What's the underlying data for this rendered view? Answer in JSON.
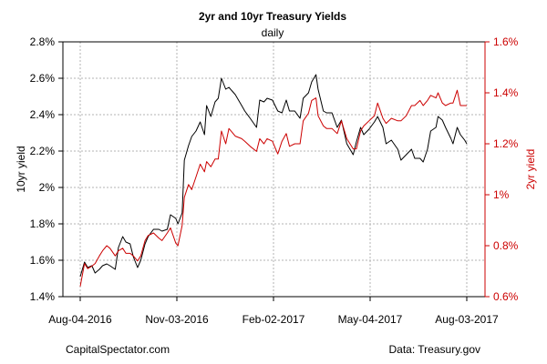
{
  "chart_data": {
    "type": "line",
    "title": "2yr and 10yr Treasury Yields",
    "subtitle": "daily",
    "ylabel_left": "10yr yield",
    "ylabel_right": "2yr yield",
    "ylim_left": [
      1.4,
      2.8
    ],
    "ylim_right": [
      0.6,
      1.6
    ],
    "yticks_left": [
      "1.4%",
      "1.6%",
      "1.8%",
      "2%",
      "2.2%",
      "2.4%",
      "2.6%",
      "2.8%"
    ],
    "yticks_right": [
      "0.6%",
      "0.8%",
      "1%",
      "1.2%",
      "1.4%",
      "1.6%"
    ],
    "xticks": [
      "Aug-04-2016",
      "Nov-03-2016",
      "Feb-02-2017",
      "May-04-2017",
      "Aug-03-2017"
    ],
    "xlim": [
      "2016-08-04",
      "2017-08-03"
    ],
    "grid": true,
    "series": [
      {
        "name": "10yr yield",
        "axis": "left",
        "color": "#000000",
        "points": [
          [
            "2016-08-04",
            1.51
          ],
          [
            "2016-08-08",
            1.59
          ],
          [
            "2016-08-11",
            1.56
          ],
          [
            "2016-08-15",
            1.57
          ],
          [
            "2016-08-18",
            1.53
          ],
          [
            "2016-08-22",
            1.55
          ],
          [
            "2016-08-25",
            1.57
          ],
          [
            "2016-08-29",
            1.58
          ],
          [
            "2016-09-01",
            1.57
          ],
          [
            "2016-09-06",
            1.55
          ],
          [
            "2016-09-09",
            1.67
          ],
          [
            "2016-09-13",
            1.73
          ],
          [
            "2016-09-16",
            1.7
          ],
          [
            "2016-09-20",
            1.69
          ],
          [
            "2016-09-23",
            1.62
          ],
          [
            "2016-09-27",
            1.56
          ],
          [
            "2016-09-30",
            1.6
          ],
          [
            "2016-10-04",
            1.69
          ],
          [
            "2016-10-07",
            1.73
          ],
          [
            "2016-10-12",
            1.77
          ],
          [
            "2016-10-17",
            1.77
          ],
          [
            "2016-10-20",
            1.76
          ],
          [
            "2016-10-25",
            1.77
          ],
          [
            "2016-10-28",
            1.85
          ],
          [
            "2016-11-02",
            1.83
          ],
          [
            "2016-11-04",
            1.8
          ],
          [
            "2016-11-08",
            1.86
          ],
          [
            "2016-11-10",
            2.15
          ],
          [
            "2016-11-14",
            2.23
          ],
          [
            "2016-11-17",
            2.28
          ],
          [
            "2016-11-21",
            2.31
          ],
          [
            "2016-11-25",
            2.36
          ],
          [
            "2016-11-29",
            2.29
          ],
          [
            "2016-12-01",
            2.45
          ],
          [
            "2016-12-05",
            2.39
          ],
          [
            "2016-12-09",
            2.47
          ],
          [
            "2016-12-12",
            2.49
          ],
          [
            "2016-12-15",
            2.6
          ],
          [
            "2016-12-19",
            2.54
          ],
          [
            "2016-12-22",
            2.55
          ],
          [
            "2016-12-28",
            2.51
          ],
          [
            "2017-01-03",
            2.45
          ],
          [
            "2017-01-06",
            2.42
          ],
          [
            "2017-01-11",
            2.38
          ],
          [
            "2017-01-17",
            2.33
          ],
          [
            "2017-01-20",
            2.48
          ],
          [
            "2017-01-24",
            2.47
          ],
          [
            "2017-01-27",
            2.49
          ],
          [
            "2017-02-01",
            2.48
          ],
          [
            "2017-02-06",
            2.42
          ],
          [
            "2017-02-10",
            2.41
          ],
          [
            "2017-02-14",
            2.48
          ],
          [
            "2017-02-17",
            2.42
          ],
          [
            "2017-02-22",
            2.42
          ],
          [
            "2017-02-27",
            2.38
          ],
          [
            "2017-03-02",
            2.49
          ],
          [
            "2017-03-07",
            2.52
          ],
          [
            "2017-03-10",
            2.58
          ],
          [
            "2017-03-14",
            2.62
          ],
          [
            "2017-03-16",
            2.54
          ],
          [
            "2017-03-21",
            2.42
          ],
          [
            "2017-03-24",
            2.41
          ],
          [
            "2017-03-29",
            2.41
          ],
          [
            "2017-04-03",
            2.33
          ],
          [
            "2017-04-07",
            2.37
          ],
          [
            "2017-04-12",
            2.24
          ],
          [
            "2017-04-18",
            2.18
          ],
          [
            "2017-04-21",
            2.25
          ],
          [
            "2017-04-25",
            2.33
          ],
          [
            "2017-04-28",
            2.29
          ],
          [
            "2017-05-03",
            2.32
          ],
          [
            "2017-05-08",
            2.36
          ],
          [
            "2017-05-11",
            2.39
          ],
          [
            "2017-05-16",
            2.33
          ],
          [
            "2017-05-19",
            2.24
          ],
          [
            "2017-05-24",
            2.26
          ],
          [
            "2017-05-30",
            2.21
          ],
          [
            "2017-06-02",
            2.15
          ],
          [
            "2017-06-07",
            2.18
          ],
          [
            "2017-06-12",
            2.21
          ],
          [
            "2017-06-15",
            2.16
          ],
          [
            "2017-06-20",
            2.16
          ],
          [
            "2017-06-23",
            2.14
          ],
          [
            "2017-06-27",
            2.21
          ],
          [
            "2017-06-30",
            2.31
          ],
          [
            "2017-07-05",
            2.33
          ],
          [
            "2017-07-07",
            2.39
          ],
          [
            "2017-07-11",
            2.37
          ],
          [
            "2017-07-14",
            2.33
          ],
          [
            "2017-07-19",
            2.27
          ],
          [
            "2017-07-21",
            2.24
          ],
          [
            "2017-07-25",
            2.33
          ],
          [
            "2017-07-28",
            2.29
          ],
          [
            "2017-08-01",
            2.26
          ],
          [
            "2017-08-03",
            2.24
          ]
        ]
      },
      {
        "name": "2yr yield",
        "axis": "right",
        "color": "#cc0000",
        "points": [
          [
            "2016-08-04",
            0.64
          ],
          [
            "2016-08-08",
            0.73
          ],
          [
            "2016-08-11",
            0.71
          ],
          [
            "2016-08-15",
            0.72
          ],
          [
            "2016-08-18",
            0.73
          ],
          [
            "2016-08-22",
            0.76
          ],
          [
            "2016-08-25",
            0.78
          ],
          [
            "2016-08-29",
            0.8
          ],
          [
            "2016-09-01",
            0.79
          ],
          [
            "2016-09-06",
            0.76
          ],
          [
            "2016-09-09",
            0.78
          ],
          [
            "2016-09-13",
            0.79
          ],
          [
            "2016-09-16",
            0.77
          ],
          [
            "2016-09-20",
            0.77
          ],
          [
            "2016-09-23",
            0.76
          ],
          [
            "2016-09-27",
            0.74
          ],
          [
            "2016-09-30",
            0.76
          ],
          [
            "2016-10-04",
            0.82
          ],
          [
            "2016-10-07",
            0.84
          ],
          [
            "2016-10-12",
            0.85
          ],
          [
            "2016-10-17",
            0.83
          ],
          [
            "2016-10-20",
            0.82
          ],
          [
            "2016-10-25",
            0.85
          ],
          [
            "2016-10-28",
            0.87
          ],
          [
            "2016-11-02",
            0.81
          ],
          [
            "2016-11-04",
            0.8
          ],
          [
            "2016-11-08",
            0.88
          ],
          [
            "2016-11-10",
            0.99
          ],
          [
            "2016-11-14",
            1.04
          ],
          [
            "2016-11-17",
            1.02
          ],
          [
            "2016-11-21",
            1.07
          ],
          [
            "2016-11-25",
            1.12
          ],
          [
            "2016-11-29",
            1.09
          ],
          [
            "2016-12-01",
            1.13
          ],
          [
            "2016-12-05",
            1.11
          ],
          [
            "2016-12-09",
            1.14
          ],
          [
            "2016-12-12",
            1.14
          ],
          [
            "2016-12-15",
            1.25
          ],
          [
            "2016-12-19",
            1.2
          ],
          [
            "2016-12-22",
            1.26
          ],
          [
            "2016-12-28",
            1.23
          ],
          [
            "2017-01-03",
            1.22
          ],
          [
            "2017-01-06",
            1.21
          ],
          [
            "2017-01-11",
            1.19
          ],
          [
            "2017-01-17",
            1.17
          ],
          [
            "2017-01-20",
            1.22
          ],
          [
            "2017-01-24",
            1.2
          ],
          [
            "2017-01-27",
            1.22
          ],
          [
            "2017-02-01",
            1.21
          ],
          [
            "2017-02-06",
            1.16
          ],
          [
            "2017-02-10",
            1.21
          ],
          [
            "2017-02-14",
            1.24
          ],
          [
            "2017-02-17",
            1.19
          ],
          [
            "2017-02-22",
            1.2
          ],
          [
            "2017-02-27",
            1.2
          ],
          [
            "2017-03-02",
            1.29
          ],
          [
            "2017-03-07",
            1.32
          ],
          [
            "2017-03-10",
            1.37
          ],
          [
            "2017-03-14",
            1.38
          ],
          [
            "2017-03-16",
            1.31
          ],
          [
            "2017-03-21",
            1.27
          ],
          [
            "2017-03-24",
            1.26
          ],
          [
            "2017-03-29",
            1.26
          ],
          [
            "2017-04-03",
            1.24
          ],
          [
            "2017-04-07",
            1.29
          ],
          [
            "2017-04-12",
            1.22
          ],
          [
            "2017-04-18",
            1.18
          ],
          [
            "2017-04-21",
            1.18
          ],
          [
            "2017-04-25",
            1.25
          ],
          [
            "2017-04-28",
            1.27
          ],
          [
            "2017-05-03",
            1.29
          ],
          [
            "2017-05-08",
            1.31
          ],
          [
            "2017-05-11",
            1.36
          ],
          [
            "2017-05-16",
            1.3
          ],
          [
            "2017-05-19",
            1.28
          ],
          [
            "2017-05-24",
            1.3
          ],
          [
            "2017-05-30",
            1.29
          ],
          [
            "2017-06-02",
            1.29
          ],
          [
            "2017-06-07",
            1.31
          ],
          [
            "2017-06-12",
            1.35
          ],
          [
            "2017-06-15",
            1.35
          ],
          [
            "2017-06-20",
            1.37
          ],
          [
            "2017-06-23",
            1.35
          ],
          [
            "2017-06-27",
            1.37
          ],
          [
            "2017-06-30",
            1.39
          ],
          [
            "2017-07-05",
            1.38
          ],
          [
            "2017-07-07",
            1.4
          ],
          [
            "2017-07-11",
            1.36
          ],
          [
            "2017-07-14",
            1.35
          ],
          [
            "2017-07-19",
            1.36
          ],
          [
            "2017-07-21",
            1.36
          ],
          [
            "2017-07-25",
            1.41
          ],
          [
            "2017-07-28",
            1.35
          ],
          [
            "2017-08-01",
            1.35
          ],
          [
            "2017-08-03",
            1.35
          ]
        ]
      }
    ]
  },
  "footer": {
    "left": "CapitalSpectator.com",
    "right": "Data: Treasury.gov"
  }
}
